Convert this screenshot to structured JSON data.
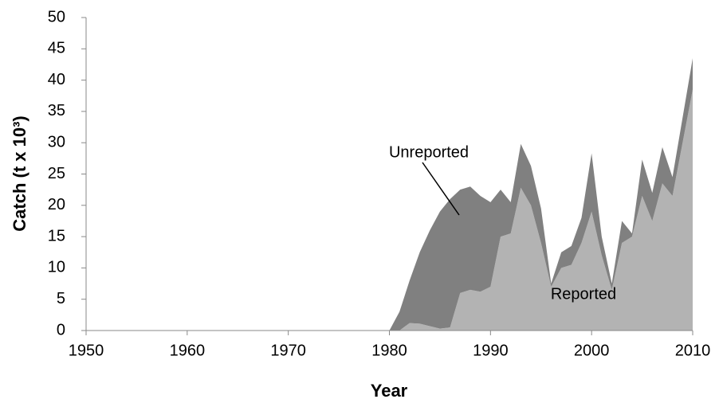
{
  "chart_data": {
    "type": "stacked_area",
    "xlabel": "Year",
    "ylabel": "Catch (t x 10³)",
    "x": [
      1950,
      1951,
      1952,
      1953,
      1954,
      1955,
      1956,
      1957,
      1958,
      1959,
      1960,
      1961,
      1962,
      1963,
      1964,
      1965,
      1966,
      1967,
      1968,
      1969,
      1970,
      1971,
      1972,
      1973,
      1974,
      1975,
      1976,
      1977,
      1978,
      1979,
      1980,
      1981,
      1982,
      1983,
      1984,
      1985,
      1986,
      1987,
      1988,
      1989,
      1990,
      1991,
      1992,
      1993,
      1994,
      1995,
      1996,
      1997,
      1998,
      1999,
      2000,
      2001,
      2002,
      2003,
      2004,
      2005,
      2006,
      2007,
      2008,
      2009,
      2010
    ],
    "series": [
      {
        "name": "Reported",
        "color": "#b3b3b3",
        "values": [
          0,
          0,
          0,
          0,
          0,
          0,
          0,
          0,
          0,
          0,
          0,
          0,
          0,
          0,
          0,
          0,
          0,
          0,
          0,
          0,
          0,
          0,
          0,
          0,
          0,
          0,
          0,
          0,
          0,
          0,
          0,
          0,
          1.2,
          1.1,
          0.7,
          0.3,
          0.5,
          6,
          6.5,
          6.2,
          7,
          15,
          15.5,
          22.8,
          20,
          14,
          7,
          10,
          10.5,
          14,
          19,
          12,
          6.5,
          14,
          15,
          21.5,
          17.5,
          23.5,
          21.5,
          30,
          38.5
        ]
      },
      {
        "name": "Unreported",
        "color": "#808080",
        "values": [
          0,
          0,
          0,
          0,
          0,
          0,
          0,
          0,
          0,
          0,
          0,
          0,
          0,
          0,
          0,
          0,
          0,
          0,
          0,
          0,
          0,
          0,
          0,
          0,
          0,
          0,
          0,
          0,
          0,
          0,
          0,
          3,
          6.8,
          11.4,
          15.3,
          18.7,
          20.5,
          16.5,
          16.5,
          15.3,
          13.5,
          7.5,
          5,
          7,
          6.3,
          5.5,
          0.5,
          2.5,
          3,
          4,
          9.3,
          3,
          1,
          3.5,
          0.5,
          5.8,
          4.5,
          5.8,
          3,
          4,
          5
        ]
      }
    ],
    "xlim": [
      1950,
      2010
    ],
    "xticks": [
      1950,
      1960,
      1970,
      1980,
      1990,
      2000,
      2010
    ],
    "ylim": [
      0,
      50
    ],
    "yticks": [
      0,
      5,
      10,
      15,
      20,
      25,
      30,
      35,
      40,
      45,
      50
    ],
    "annotations": [
      "Unreported",
      "Reported"
    ]
  }
}
